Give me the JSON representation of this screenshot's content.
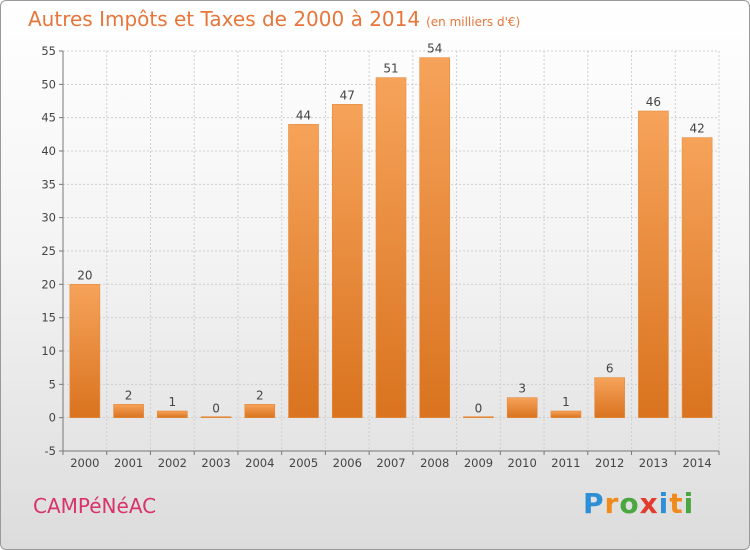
{
  "title": "Autres Impôts et Taxes de 2000 à 2014",
  "subtitle": "(en milliers d'€)",
  "commune": "CAMPéNéAC",
  "logo": {
    "letters": [
      "P",
      "r",
      "o",
      "x",
      "i",
      "t",
      "i"
    ],
    "colors": [
      "#2f8fd6",
      "#f08a1c",
      "#4aa63e",
      "#e23c2e",
      "#2f8fd6",
      "#f08a1c",
      "#4aa63e"
    ]
  },
  "colors": {
    "bar_light": "#f6a35a",
    "bar_dark": "#d9731f",
    "title": "#e8763a",
    "commune": "#d8336a"
  },
  "chart_data": {
    "type": "bar",
    "categories": [
      "2000",
      "2001",
      "2002",
      "2003",
      "2004",
      "2005",
      "2006",
      "2007",
      "2008",
      "2009",
      "2010",
      "2011",
      "2012",
      "2013",
      "2014"
    ],
    "values": [
      20,
      2,
      1,
      0,
      2,
      44,
      47,
      51,
      54,
      0,
      3,
      1,
      6,
      46,
      42
    ],
    "ylim": [
      -5,
      55
    ],
    "yticks": [
      -5,
      0,
      5,
      10,
      15,
      20,
      25,
      30,
      35,
      40,
      45,
      50,
      55
    ],
    "grid": true
  }
}
